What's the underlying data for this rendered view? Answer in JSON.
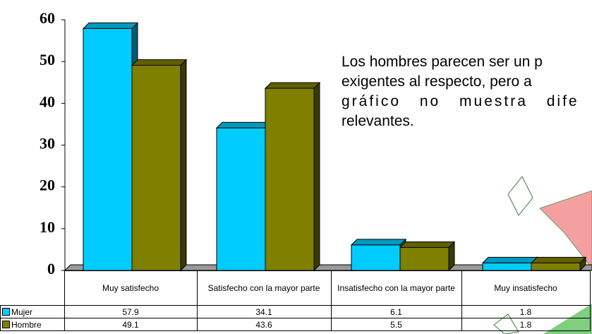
{
  "chart_data": {
    "type": "bar3d",
    "categories": [
      "Muy satisfecho",
      "Satisfecho con la mayor parte",
      "Insatisfecho con la mayor parte",
      "Muy insatisfecho"
    ],
    "series": [
      {
        "name": "Mujer",
        "color": "#00ccff",
        "values": [
          57.9,
          34.1,
          6.1,
          1.8
        ]
      },
      {
        "name": "Hombre",
        "color": "#808000",
        "values": [
          49.1,
          43.6,
          5.5,
          1.8
        ]
      }
    ],
    "ylim": [
      0,
      60
    ],
    "yticks": [
      0,
      10,
      20,
      30,
      40,
      50,
      60
    ],
    "annotation": [
      "Los hombres parecen ser un p",
      "exigentes al respecto, pero a",
      "gráfico no muestra dife",
      "relevantes."
    ]
  }
}
